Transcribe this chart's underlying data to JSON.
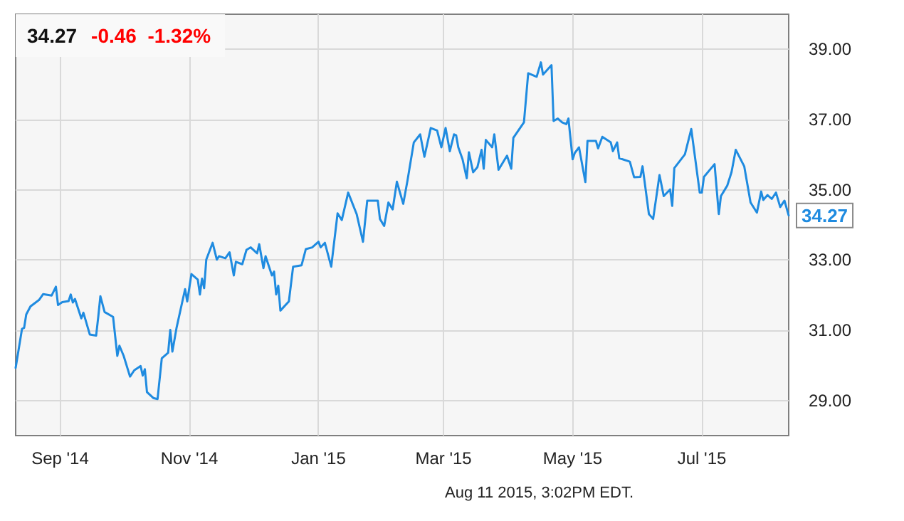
{
  "chart_data": {
    "type": "line",
    "title": "34.27",
    "subtitle": "-0.46  -1.32%",
    "annotations": [
      {
        "text": "34.27",
        "x": "2015-08-11",
        "y": 34.27
      },
      "Aug 11 2015, 3:02PM EDT."
    ],
    "x": [
      "2014-08-11",
      "2014-08-14",
      "2014-08-15",
      "2014-08-16",
      "2014-08-18",
      "2014-08-22",
      "2014-08-24",
      "2014-08-28",
      "2014-08-30",
      "2014-08-31",
      "2014-09-02",
      "2014-09-05",
      "2014-09-06",
      "2014-09-07",
      "2014-09-08",
      "2014-09-11",
      "2014-09-12",
      "2014-09-15",
      "2014-09-18",
      "2014-09-19",
      "2014-09-20",
      "2014-09-22",
      "2014-09-26",
      "2014-09-28",
      "2014-09-29",
      "2014-10-01",
      "2014-10-04",
      "2014-10-06",
      "2014-10-09",
      "2014-10-10",
      "2014-10-11",
      "2014-10-12",
      "2014-10-15",
      "2014-10-17",
      "2014-10-19",
      "2014-10-22",
      "2014-10-23",
      "2014-10-24",
      "2014-10-26",
      "2014-10-30",
      "2014-10-31",
      "2014-11-02",
      "2014-11-05",
      "2014-11-06",
      "2014-11-07",
      "2014-11-08",
      "2014-11-09",
      "2014-11-12",
      "2014-11-14",
      "2014-11-15",
      "2014-11-18",
      "2014-11-20",
      "2014-11-22",
      "2014-11-23",
      "2014-11-26",
      "2014-11-28",
      "2014-11-30",
      "2014-12-03",
      "2014-12-04",
      "2014-12-06",
      "2014-12-07",
      "2014-12-10",
      "2014-12-11",
      "2014-12-12",
      "2014-12-13",
      "2014-12-14",
      "2014-12-18",
      "2014-12-20",
      "2014-12-24",
      "2014-12-26",
      "2014-12-29",
      "2015-01-01",
      "2015-01-02",
      "2015-01-04",
      "2015-01-07",
      "2015-01-10",
      "2015-01-12",
      "2015-01-15",
      "2015-01-19",
      "2015-01-22",
      "2015-01-24",
      "2015-01-29",
      "2015-01-30",
      "2015-02-01",
      "2015-02-03",
      "2015-02-05",
      "2015-02-07",
      "2015-02-10",
      "2015-02-12",
      "2015-02-15",
      "2015-02-18",
      "2015-02-20",
      "2015-02-23",
      "2015-02-26",
      "2015-02-28",
      "2015-03-02",
      "2015-03-04",
      "2015-03-06",
      "2015-03-07",
      "2015-03-08",
      "2015-03-10",
      "2015-03-12",
      "2015-03-13",
      "2015-03-15",
      "2015-03-17",
      "2015-03-19",
      "2015-03-20",
      "2015-03-21",
      "2015-03-24",
      "2015-03-25",
      "2015-03-27",
      "2015-03-31",
      "2015-04-02",
      "2015-04-03",
      "2015-04-08",
      "2015-04-10",
      "2015-04-14",
      "2015-04-16",
      "2015-04-17",
      "2015-04-21",
      "2015-04-22",
      "2015-04-24",
      "2015-04-26",
      "2015-04-28",
      "2015-04-29",
      "2015-05-01",
      "2015-05-02",
      "2015-05-04",
      "2015-05-07",
      "2015-05-08",
      "2015-05-12",
      "2015-05-13",
      "2015-05-15",
      "2015-05-19",
      "2015-05-20",
      "2015-05-22",
      "2015-05-23",
      "2015-05-28",
      "2015-05-30",
      "2015-06-02",
      "2015-06-03",
      "2015-06-06",
      "2015-06-08",
      "2015-06-11",
      "2015-06-13",
      "2015-06-16",
      "2015-06-17",
      "2015-06-18",
      "2015-06-23",
      "2015-06-26",
      "2015-06-30",
      "2015-07-01",
      "2015-07-02",
      "2015-07-07",
      "2015-07-09",
      "2015-07-10",
      "2015-07-13",
      "2015-07-15",
      "2015-07-17",
      "2015-07-21",
      "2015-07-24",
      "2015-07-27",
      "2015-07-29",
      "2015-07-30",
      "2015-08-01",
      "2015-08-03",
      "2015-08-05",
      "2015-08-07",
      "2015-08-09",
      "2015-08-11"
    ],
    "series": [
      {
        "color": "#1f8be0",
        "values": [
          29.93,
          31.04,
          31.07,
          31.45,
          31.68,
          31.86,
          32.03,
          31.99,
          32.24,
          31.72,
          31.8,
          31.83,
          32.02,
          31.79,
          31.89,
          31.34,
          31.5,
          30.88,
          30.85,
          31.38,
          31.97,
          31.52,
          31.38,
          30.27,
          30.56,
          30.27,
          29.68,
          29.86,
          29.98,
          29.71,
          29.89,
          29.24,
          29.07,
          29.04,
          30.2,
          30.36,
          31.01,
          30.39,
          31.08,
          32.17,
          31.82,
          32.6,
          32.44,
          32.02,
          32.47,
          32.2,
          33.01,
          33.49,
          33.01,
          33.11,
          33.05,
          33.22,
          32.56,
          32.95,
          32.88,
          33.29,
          33.36,
          33.19,
          33.45,
          32.77,
          33.11,
          32.56,
          32.67,
          32.02,
          32.27,
          31.56,
          31.82,
          32.81,
          32.85,
          33.31,
          33.36,
          33.52,
          33.36,
          33.49,
          32.81,
          34.33,
          34.14,
          34.92,
          34.31,
          33.52,
          34.69,
          34.69,
          34.17,
          33.97,
          34.64,
          34.44,
          35.23,
          34.6,
          35.26,
          36.35,
          36.58,
          35.94,
          36.76,
          36.69,
          36.21,
          36.76,
          36.1,
          36.58,
          36.55,
          36.21,
          35.87,
          35.33,
          36.07,
          35.5,
          35.64,
          36.14,
          35.6,
          36.42,
          36.21,
          36.58,
          35.57,
          35.97,
          35.6,
          36.48,
          36.92,
          38.32,
          38.22,
          38.63,
          38.28,
          38.55,
          36.96,
          37.03,
          36.92,
          36.87,
          37.03,
          35.87,
          36.05,
          36.21,
          35.22,
          36.39,
          36.39,
          36.18,
          36.51,
          36.35,
          36.1,
          36.35,
          35.9,
          35.8,
          35.36,
          35.37,
          35.67,
          34.31,
          34.17,
          35.42,
          34.82,
          35.01,
          34.54,
          35.62,
          36.01,
          36.73,
          34.92,
          34.92,
          35.37,
          35.73,
          34.31,
          34.82,
          35.12,
          35.5,
          36.14,
          35.67,
          34.64,
          34.35,
          34.95,
          34.71,
          34.85,
          34.74,
          34.92,
          34.51,
          34.69,
          34.27
        ]
      }
    ],
    "xlim": [
      "2014-08-11",
      "2015-08-11"
    ],
    "xticks": [
      {
        "value": "2014-09-01",
        "label": "Sep '14"
      },
      {
        "value": "2014-11-01",
        "label": "Nov '14"
      },
      {
        "value": "2015-01-01",
        "label": "Jan '15"
      },
      {
        "value": "2015-03-01",
        "label": "Mar '15"
      },
      {
        "value": "2015-05-01",
        "label": "May '15"
      },
      {
        "value": "2015-07-01",
        "label": "Jul '15"
      }
    ],
    "ylim": [
      28,
      40
    ],
    "yticks": [
      {
        "value": 29,
        "label": "29.00"
      },
      {
        "value": 31,
        "label": "31.00"
      },
      {
        "value": 33,
        "label": "33.00"
      },
      {
        "value": 35,
        "label": "35.00"
      },
      {
        "value": 37,
        "label": "37.00"
      },
      {
        "value": 39,
        "label": "39.00"
      }
    ],
    "grid": true,
    "marker": "none",
    "line_style": "solid"
  }
}
